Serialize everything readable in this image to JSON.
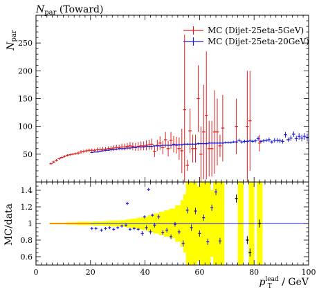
{
  "chart_data": [
    {
      "type": "line",
      "title": "N_par (Toward)",
      "title_main": "N",
      "title_sub": "par",
      "title_rest": " (Toward)",
      "ylabel": "N_par",
      "ylabel_main": "N",
      "ylabel_sub": "par",
      "xlim": [
        0,
        100
      ],
      "ylim": [
        0,
        300
      ],
      "yticks": [
        50,
        100,
        150,
        200,
        250
      ],
      "grid": false,
      "legend_position": "top-right",
      "series": [
        {
          "name": "MC (Dijet-25eta-5GeV)",
          "color": "#e02020",
          "x": [
            5.5,
            6.5,
            7.5,
            8.5,
            9.5,
            10.5,
            11.5,
            12.5,
            13.5,
            14.5,
            15.5,
            16.5,
            17.5,
            18.5,
            19.5,
            20.5,
            21.5,
            22.5,
            23.5,
            24.5,
            25.5,
            26.5,
            27.5,
            28.5,
            29.5,
            30.5,
            31.5,
            32.5,
            33.5,
            34.5,
            35.5,
            36.5,
            37.5,
            38.5,
            39.5,
            40.5,
            41.5,
            42.5,
            43.5,
            44.5,
            45.5,
            46.5,
            47.5,
            48.5,
            49.5,
            50.5,
            51.5,
            52.5,
            53.5,
            54.5,
            55.5,
            56.5,
            57.5,
            58.5,
            59.5,
            60.5,
            61.5,
            62.5,
            63.5,
            64.5,
            65.5,
            66.5,
            67.5,
            68.5,
            73.5,
            77.5,
            78.5,
            82.0
          ],
          "y": [
            33,
            36,
            39,
            42,
            44,
            46,
            48,
            49,
            50,
            51,
            52,
            54,
            55,
            56,
            57,
            57,
            57,
            58,
            58,
            59,
            59,
            60,
            60,
            61,
            62,
            62,
            63,
            63,
            64,
            65,
            64,
            63,
            64,
            65,
            65,
            66,
            67,
            68,
            55,
            66,
            70,
            62,
            76,
            60,
            75,
            68,
            66,
            60,
            56,
            130,
            30,
            92,
            60,
            60,
            150,
            50,
            90,
            120,
            60,
            60,
            90,
            90,
            65,
            97,
            100,
            100,
            110,
            70
          ],
          "yerr": [
            2,
            2,
            2,
            2,
            2,
            2,
            2,
            2,
            2,
            2,
            3,
            3,
            3,
            3,
            3,
            3,
            3,
            4,
            4,
            4,
            4,
            4,
            5,
            5,
            5,
            5,
            6,
            6,
            6,
            7,
            7,
            7,
            8,
            8,
            8,
            9,
            9,
            10,
            10,
            10,
            12,
            12,
            14,
            14,
            15,
            15,
            15,
            20,
            40,
            135,
            10,
            40,
            25,
            25,
            60,
            50,
            85,
            115,
            50,
            50,
            75,
            60,
            20,
            60,
            50,
            100,
            90,
            15
          ]
        },
        {
          "name": "MC (Dijet-25eta-20GeV)",
          "color": "#1e1ed8",
          "x": [
            20.5,
            21.5,
            22.5,
            23.5,
            24.5,
            25.5,
            26.5,
            27.5,
            28.5,
            29.5,
            30.5,
            31.5,
            32.5,
            33.5,
            34.5,
            35.5,
            36.5,
            37.5,
            38.5,
            39.5,
            40.5,
            41.5,
            42.5,
            43.5,
            44.5,
            45.5,
            46.5,
            47.5,
            48.5,
            49.5,
            50.5,
            51.5,
            52.5,
            53.5,
            54.5,
            55.5,
            56.5,
            57.5,
            58.5,
            59.5,
            60.5,
            61.5,
            62.5,
            63.5,
            64.5,
            65.5,
            66.5,
            67.5,
            68.5,
            69.5,
            70.5,
            71.5,
            72.5,
            73.5,
            74.5,
            75.5,
            76.5,
            77.5,
            78.5,
            79.5,
            80.5,
            81.5,
            82.5,
            83.5,
            84.5,
            85.5,
            86.5,
            87.5,
            88.5,
            89.5,
            90.5,
            91.5,
            92.5,
            93.5,
            94.5,
            95.5,
            96.5,
            97.5,
            98.5,
            99.5
          ],
          "y": [
            53,
            54,
            54,
            55,
            56,
            57,
            57,
            58,
            58,
            59,
            60,
            60,
            60,
            61,
            61,
            62,
            62,
            63,
            63,
            63,
            64,
            64,
            64,
            65,
            65,
            65,
            66,
            66,
            66,
            66,
            67,
            67,
            67,
            67,
            68,
            68,
            68,
            68,
            68,
            69,
            69,
            69,
            69,
            70,
            70,
            70,
            70,
            70,
            70,
            71,
            71,
            71,
            72,
            72,
            75,
            72,
            73,
            73,
            74,
            73,
            74,
            78,
            73,
            74,
            75,
            76,
            72,
            75,
            75,
            74,
            73,
            85,
            76,
            79,
            86,
            78,
            82,
            79,
            82,
            80
          ],
          "yerr": [
            1,
            1,
            1,
            1,
            1,
            1,
            1,
            1,
            1,
            1,
            1,
            1,
            1,
            1,
            1,
            1,
            1,
            1,
            1,
            1,
            1,
            1,
            1,
            1,
            1,
            1,
            1,
            1,
            1,
            1,
            2,
            2,
            2,
            2,
            2,
            2,
            2,
            2,
            2,
            2,
            2,
            2,
            2,
            2,
            2,
            2,
            2,
            2,
            2,
            2,
            2,
            2,
            2,
            2,
            3,
            3,
            3,
            3,
            3,
            3,
            3,
            4,
            3,
            3,
            3,
            4,
            3,
            4,
            4,
            4,
            4,
            5,
            4,
            5,
            5,
            5,
            6,
            6,
            6,
            7
          ]
        }
      ]
    },
    {
      "type": "scatter",
      "ylabel": "MC/data",
      "xlabel": "p_T^lead / GeV",
      "xlabel_main": "p",
      "xlabel_sub": "T",
      "xlabel_sup": "lead",
      "xlabel_rest": " / GeV",
      "xlim": [
        0,
        100
      ],
      "ylim": [
        0.5,
        1.5
      ],
      "xticks": [
        0,
        20,
        40,
        60,
        80,
        100
      ],
      "yticks": [
        0.6,
        0.8,
        1,
        1.2,
        1.4
      ],
      "ytick_labels": [
        "0.6",
        "0.8",
        "1",
        "1.2",
        "1.4"
      ],
      "reference_line": 1,
      "band_color": "#ffff00",
      "band_x": [
        5,
        7,
        9,
        11,
        13,
        15,
        17,
        19,
        21,
        23,
        25,
        27,
        29,
        31,
        33,
        35,
        37,
        39,
        41,
        43,
        45,
        47,
        49,
        51,
        53,
        54,
        55,
        56,
        57,
        58,
        59,
        60,
        61,
        62,
        63,
        64,
        65,
        66,
        67,
        68,
        69,
        73,
        74,
        75,
        76,
        77,
        78,
        79,
        80,
        81,
        82,
        83
      ],
      "band_hw": [
        0.01,
        0.01,
        0.01,
        0.015,
        0.015,
        0.02,
        0.02,
        0.02,
        0.025,
        0.025,
        0.03,
        0.035,
        0.035,
        0.04,
        0.05,
        0.06,
        0.07,
        0.08,
        0.1,
        0.12,
        0.14,
        0.16,
        0.18,
        0.22,
        0.28,
        0.35,
        0.5,
        0.5,
        0.5,
        0.5,
        0.45,
        0.5,
        0.5,
        0.5,
        0.5,
        0.4,
        0.5,
        0.5,
        0.5,
        0.5,
        0,
        0,
        0.5,
        0.5,
        0,
        0,
        0.5,
        0.5,
        0,
        0.5,
        0.5,
        0
      ],
      "points": {
        "x": [
          20.5,
          22,
          24,
          25.5,
          27,
          28.5,
          30,
          31.5,
          33,
          34.5,
          36,
          37.5,
          39,
          40.5,
          42,
          43.5,
          45,
          46.5,
          48,
          49.5,
          51,
          52.5,
          54,
          55.5,
          57,
          58.5,
          60,
          61.5,
          63,
          64.5,
          66,
          67.5,
          73.5,
          77.5,
          78.5,
          82.0,
          33.5,
          41.3,
          39.8,
          42.7
        ],
        "y": [
          0.94,
          0.94,
          0.92,
          0.94,
          0.95,
          0.93,
          0.95,
          0.97,
          0.98,
          0.93,
          0.94,
          0.93,
          0.88,
          0.95,
          0.9,
          0.98,
          1.08,
          0.89,
          0.92,
          0.84,
          0.99,
          0.9,
          0.76,
          1.16,
          0.95,
          1.15,
          0.88,
          1.07,
          0.78,
          1.19,
          1.38,
          0.79,
          1.3,
          0.8,
          0.65,
          1.0,
          1.24,
          1.41,
          1.08,
          1.1
        ],
        "yerr": [
          0.01,
          0.01,
          0.01,
          0.01,
          0.01,
          0.01,
          0.01,
          0.01,
          0.01,
          0.01,
          0.01,
          0.01,
          0.02,
          0.02,
          0.02,
          0.02,
          0.02,
          0.02,
          0.02,
          0.02,
          0.02,
          0.02,
          0.03,
          0.03,
          0.03,
          0.03,
          0.03,
          0.03,
          0.03,
          0.03,
          0.03,
          0.03,
          0.04,
          0.04,
          0.04,
          0.04,
          0.01,
          0.01,
          0.01,
          0.01
        ]
      }
    }
  ]
}
